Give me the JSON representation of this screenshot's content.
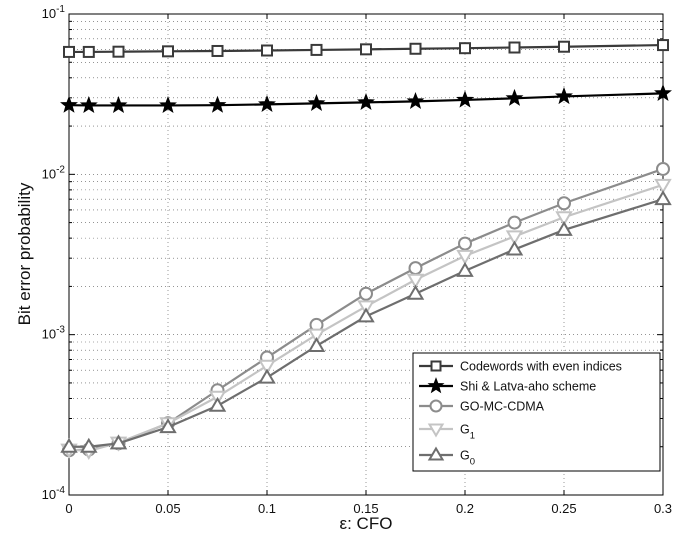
{
  "chart_data": {
    "type": "line",
    "title": "",
    "xlabel": "ε: CFO",
    "ylabel": "Bit error probability",
    "xlim": [
      0,
      0.3
    ],
    "ylim": [
      0.0001,
      0.1
    ],
    "yscale": "log",
    "grid": true,
    "legend_position": "bottom-right",
    "x_ticks": [
      "0",
      "0.05",
      "0.1",
      "0.15",
      "0.2",
      "0.25",
      "0.3"
    ],
    "y_ticks": [
      {
        "base": "10",
        "exp": "-4",
        "value": 0.0001
      },
      {
        "base": "10",
        "exp": "-3",
        "value": 0.001
      },
      {
        "base": "10",
        "exp": "-2",
        "value": 0.01
      },
      {
        "base": "10",
        "exp": "-1",
        "value": 0.1
      }
    ],
    "x": [
      0,
      0.01,
      0.025,
      0.05,
      0.075,
      0.1,
      0.125,
      0.15,
      0.175,
      0.2,
      0.225,
      0.25,
      0.3
    ],
    "series": [
      {
        "name": "Codewords with even indices",
        "marker": "square",
        "color": "#3a3a3a",
        "values": [
          0.058,
          0.058,
          0.0582,
          0.0585,
          0.0588,
          0.0592,
          0.0597,
          0.0602,
          0.0607,
          0.0612,
          0.0618,
          0.0625,
          0.064
        ]
      },
      {
        "name": "Shi & Latva-aho scheme",
        "marker": "star",
        "color": "#000000",
        "values": [
          0.027,
          0.0269,
          0.0269,
          0.0269,
          0.027,
          0.0273,
          0.0277,
          0.0281,
          0.0285,
          0.0291,
          0.0298,
          0.0306,
          0.032
        ]
      },
      {
        "name": "GO-MC-CDMA",
        "marker": "circle",
        "color": "#8c8c8c",
        "values": [
          0.00019,
          0.000192,
          0.00021,
          0.00028,
          0.00045,
          0.00072,
          0.00115,
          0.0018,
          0.0026,
          0.0037,
          0.005,
          0.0066,
          0.0108
        ]
      },
      {
        "name": "G",
        "name_sub": "1",
        "marker": "triangle-down",
        "color": "#c4c4c4",
        "values": [
          0.000192,
          0.000188,
          0.000212,
          0.00028,
          0.00041,
          0.00064,
          0.001,
          0.0015,
          0.0022,
          0.0031,
          0.0041,
          0.0054,
          0.0086
        ]
      },
      {
        "name": "G",
        "name_sub": "0",
        "marker": "triangle-up",
        "color": "#6e6e6e",
        "values": [
          0.0002,
          0.0002,
          0.00021,
          0.000265,
          0.00036,
          0.00054,
          0.00085,
          0.0013,
          0.0018,
          0.0025,
          0.0034,
          0.0045,
          0.007
        ]
      }
    ]
  }
}
